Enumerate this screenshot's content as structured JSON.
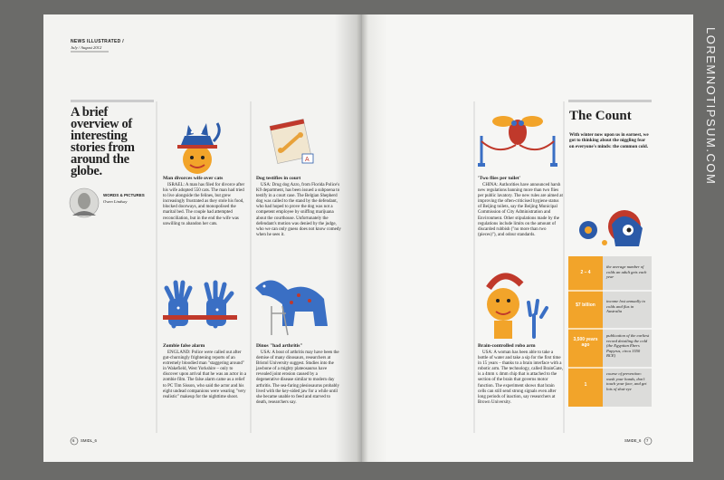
{
  "header": {
    "publication": "NEWS ILLUSTRATED /",
    "issue": "July / August 2012"
  },
  "intro": {
    "headline": "A brief overview of interesting stories from around the globe.",
    "credit_label": "WORDS & PICTURES",
    "credit_name": "Owen Lindsay"
  },
  "articles": [
    {
      "title": "Man divorces wife over cats",
      "body": "ISRAEL: A man has filed for divorce after his wife adopted 550 cats. The man had tried to live alongside the felines, but grew increasingly frustrated as they stole his food, blocked doorways, and monopolised the marital bed. The couple had attempted reconciliation, but in the end the wife was unwilling to abandon her cats."
    },
    {
      "title": "Dog testifies in court",
      "body": "USA: Drug dog Azro, from Florida Police's K9 department, has been issued a subpoena to testify in a court case. The Belgian Shepherd dog was called to the stand by the defendant, who had hoped to prove the dog was not a competent employee by sniffing marijuana about the courthouse. Unfortunately the defendant's motion was denied by the judge, who we can only guess does not know comedy when he sees it."
    },
    {
      "title": "Zombie false alarm",
      "body": "ENGLAND: Police were called out after gut-churningly frightening reports of an extremely bloodied man \"staggering around\" in Wakefield, West Yorkshire – only to discover upon arrival that he was an actor in a zombie film. The false alarm came as a relief to PC Tim Sisson, who said the actor and his eight undead companions were wearing \"very realistic\" makeup for the nighttime shoot."
    },
    {
      "title": "Dinos \"had arthritis\"",
      "body": "USA: A bout of arthritis may have been the demise of many dinosaurs, researchers at Bristol University suggest. Studies into the jawbone of a mighty plateosaurus have revealed joint erosion caused by a degenerative disease similar to modern day arthritis. The sea-faring plesiosaurus probably lived with the key-sided jaw for a while until she became unable to feed and starved to death, researchers say."
    },
    {
      "title": "'Two flies per toilet'",
      "body": "CHINA: Authorities have announced harsh new regulations banning more than two flies per public lavatory. The new rules are aimed at improving the often-criticised hygiene status of Beijing toilets, say the Beijing Municipal Commission of City Administration and Environment. Other stipulations made by the regulations include limits on the amount of discarded rubbish (\"no more than two (pieces)\"), and odour standards."
    },
    {
      "title": "Brain-controlled robo arm",
      "body": "USA: A woman has been able to take a bottle of water and take a sip for the first time in 15 years – thanks to a brain interface with a robotic arm. The technology, called BrainGate, is a 4mm x 4mm chip that is attached to the section of the brain that governs motor function. The experiment shows that brain cells can still send strong signals even after long periods of inaction, say researchers at Brown University."
    }
  ],
  "count": {
    "title": "The Count",
    "intro": "With winter now upon us in earnest, we got to thinking about the niggling fear on everyone's minds: the common cold.",
    "rows": [
      {
        "figure": "2 – 4",
        "text": "the average number of colds an adult gets each year"
      },
      {
        "figure": "$7 billion",
        "text": "income lost annually to colds and flus in Australia"
      },
      {
        "figure": "3,500 years ago",
        "text": "publication of the earliest record detailing the cold (the Egyptian Ebers Papyrus, circa 1550 BCE)"
      },
      {
        "figure": "1",
        "text": "course of prevention: wash your hands, don't touch your face, and get lots of shut-eye"
      }
    ]
  },
  "footer": {
    "left_page": "6",
    "left_label": "SMIDL_6",
    "right_label": "SMIDE_6",
    "right_page": "7"
  },
  "side_text": "LOREMNOTIPSUM.COM"
}
